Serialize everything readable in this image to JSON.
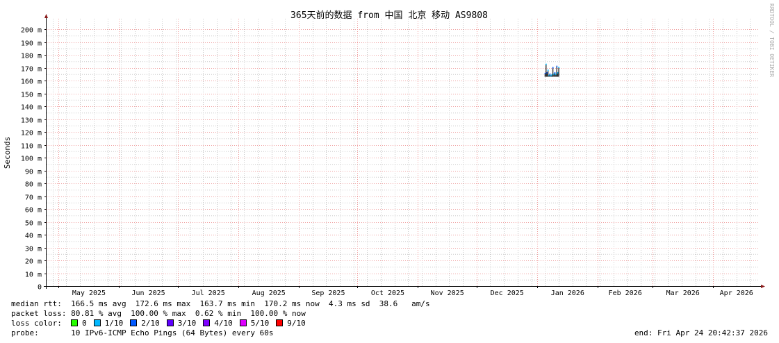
{
  "chart_data": {
    "type": "line",
    "title": "365天前的数据 from  中国 北京 移动 AS9808",
    "ylabel": "Seconds",
    "xlabel": "",
    "ylim": [
      0,
      0.2
    ],
    "yticks": [
      "0",
      "10 m",
      "20 m",
      "30 m",
      "40 m",
      "50 m",
      "60 m",
      "70 m",
      "80 m",
      "90 m",
      "100 m",
      "110 m",
      "120 m",
      "130 m",
      "140 m",
      "150 m",
      "160 m",
      "170 m",
      "180 m",
      "190 m",
      "200 m"
    ],
    "xlim": [
      "2025-04-24T20:42:37",
      "2026-04-24T20:42:37"
    ],
    "xticks": [
      "May 2025",
      "Jun 2025",
      "Jul 2025",
      "Aug 2025",
      "Sep 2025",
      "Oct 2025",
      "Nov 2025",
      "Dec 2025",
      "Jan 2026",
      "Feb 2026",
      "Mar 2026",
      "Apr 2026"
    ],
    "grid": true,
    "watermark": "RRDTOOL / TOBI OETIKER",
    "series": [
      {
        "x": [
          "2026-01-05",
          "2026-01-05T12:00",
          "2026-01-06",
          "2026-01-06T12:00",
          "2026-01-07",
          "2026-01-07T12:00",
          "2026-01-08",
          "2026-01-08T12:00",
          "2026-01-09",
          "2026-01-09T12:00",
          "2026-01-10",
          "2026-01-10T12:00",
          "2026-01-11",
          "2026-01-11T12:00",
          "2026-01-12"
        ],
        "values": [
          0.1655,
          0.1726,
          0.166,
          0.168,
          0.164,
          0.165,
          0.1637,
          0.1645,
          0.17,
          0.165,
          0.166,
          0.1648,
          0.171,
          0.166,
          0.1702
        ],
        "loss": [
          2,
          1,
          2,
          1,
          1,
          2,
          1,
          1,
          2,
          1,
          2,
          1,
          2,
          1,
          1
        ]
      }
    ]
  },
  "legend": {
    "median_rtt": "median rtt:  166.5 ms avg  172.6 ms max  163.7 ms min  170.2 ms now  4.3 ms sd  38.6   am/s",
    "packet_loss": "packet loss: 80.81 % avg  100.00 % max  0.62 % min  100.00 % now",
    "loss_color_label": "loss color:  ",
    "loss_colors": [
      {
        "label": "0",
        "color": "#26ff00"
      },
      {
        "label": "1/10",
        "color": "#00b8ff"
      },
      {
        "label": "2/10",
        "color": "#0059ff"
      },
      {
        "label": "3/10",
        "color": "#5e00ff"
      },
      {
        "label": "4/10",
        "color": "#7e00ff"
      },
      {
        "label": "5/10",
        "color": "#dd00ff"
      },
      {
        "label": "9/10",
        "color": "#ff0000"
      }
    ],
    "probe": "probe:       10 IPv6-ICMP Echo Pings (64 Bytes) every 60s",
    "end": "end: Fri Apr 24 20:42:37 2026"
  }
}
